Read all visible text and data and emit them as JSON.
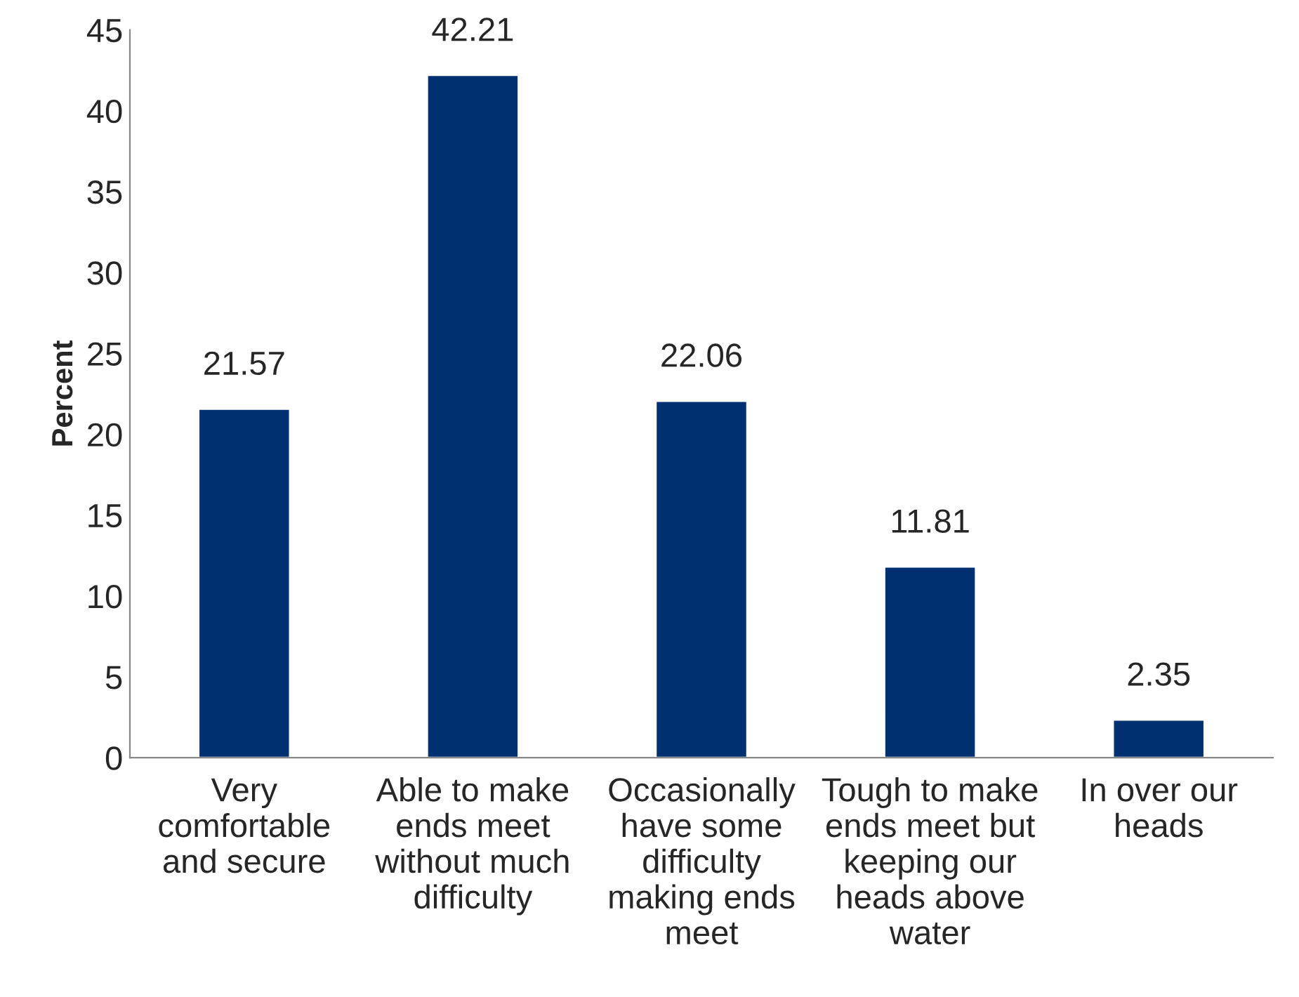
{
  "chart_data": {
    "type": "bar",
    "ylabel": "Percent",
    "categories": [
      "Very comfortable and secure",
      "Able to make ends meet without much difficulty",
      "Occasionally have some difficulty making ends meet",
      "Tough to make ends meet but keeping our heads above water",
      "In over our heads"
    ],
    "values": [
      21.57,
      42.21,
      22.06,
      11.81,
      2.35
    ],
    "color": "#003070",
    "ylim": [
      0,
      45
    ],
    "yticks": [
      0,
      5,
      10,
      15,
      20,
      25,
      30,
      35,
      40,
      45
    ],
    "data_labels": true,
    "grid": false,
    "legend": false
  }
}
